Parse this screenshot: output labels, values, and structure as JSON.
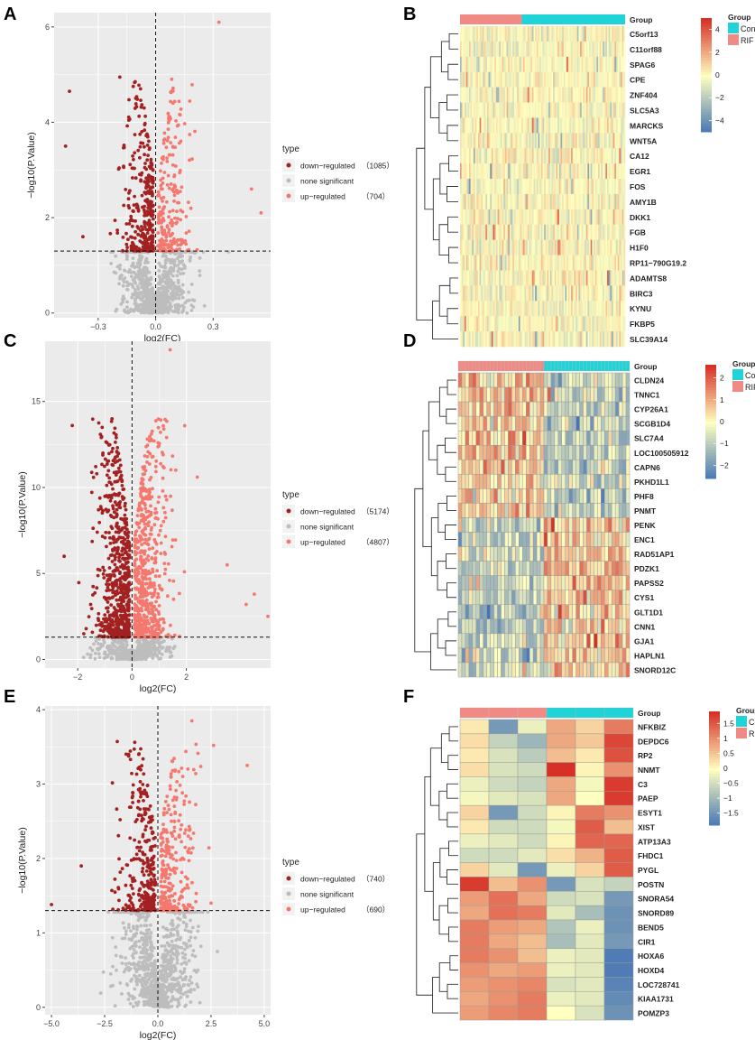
{
  "colors": {
    "down": "#a32121",
    "none": "#bdbdbd",
    "up": "#f4786e",
    "panel_bg": "#ebebeb",
    "grid": "#ffffff",
    "group_control": "#1fd3d6",
    "group_rif": "#f08a84",
    "heat_low": "#4575b4",
    "heat_mid": "#ffffbf",
    "heat_high": "#d73027"
  },
  "chart_data": [
    {
      "panel": "A",
      "type": "scatter",
      "xlabel": "log2(FC)",
      "ylabel": "−log10(P.Value)",
      "xlim": [
        -0.53,
        0.6
      ],
      "ylim": [
        -0.1,
        6.3
      ],
      "xticks": [
        -0.3,
        0.0,
        0.3
      ],
      "xtick_labels": [
        "−0.3",
        "0.0",
        "0.3"
      ],
      "yticks": [
        0,
        2,
        4,
        6
      ],
      "ytick_labels": [
        "0",
        "2",
        "4",
        "6"
      ],
      "threshold_y": 1.3,
      "sim": {
        "xspread": 0.075,
        "ymaxn": 5.0,
        "ndown": 320,
        "nup": 220,
        "nnone": 900,
        "seed": 11
      },
      "outliers": [
        [
          0.33,
          6.1
        ],
        [
          -0.45,
          4.65
        ],
        [
          -0.47,
          3.5
        ],
        [
          0.5,
          2.6
        ],
        [
          0.55,
          2.1
        ],
        [
          -0.38,
          1.6
        ]
      ],
      "legend": {
        "title": "type",
        "items": [
          {
            "label": "down−regulated",
            "count": "（1085）"
          },
          {
            "label": "none significant",
            "count": ""
          },
          {
            "label": "up−regulated",
            "count": "（704）"
          }
        ]
      }
    },
    {
      "panel": "C",
      "type": "scatter",
      "xlabel": "log2(FC)",
      "ylabel": "−log10(P.Value)",
      "xlim": [
        -3.2,
        5.1
      ],
      "ylim": [
        -0.5,
        18.5
      ],
      "xticks": [
        -2,
        0,
        2
      ],
      "xtick_labels": [
        "−2",
        "0",
        "2"
      ],
      "yticks": [
        0,
        5,
        10,
        15
      ],
      "ytick_labels": [
        "0",
        "5",
        "10",
        "15"
      ],
      "threshold_y": 1.3,
      "sim": {
        "xspread": 0.55,
        "ymaxn": 14.0,
        "ndown": 700,
        "nup": 650,
        "nnone": 600,
        "seed": 23
      },
      "outliers": [
        [
          1.4,
          18.0
        ],
        [
          -2.2,
          13.6
        ],
        [
          2.4,
          10.6
        ],
        [
          3.5,
          5.5
        ],
        [
          4.5,
          3.8
        ],
        [
          5.0,
          2.5
        ],
        [
          4.2,
          3.2
        ],
        [
          -2.5,
          6.0
        ]
      ],
      "legend": {
        "title": "type",
        "items": [
          {
            "label": "down−regulated",
            "count": "（5174）"
          },
          {
            "label": "none significant",
            "count": ""
          },
          {
            "label": "up−regulated",
            "count": "（4807）"
          }
        ]
      }
    },
    {
      "panel": "E",
      "type": "scatter",
      "xlabel": "log2(FC)",
      "ylabel": "−log10(P.Value)",
      "xlim": [
        -5.3,
        5.3
      ],
      "ylim": [
        -0.1,
        4.05
      ],
      "xticks": [
        -5,
        -2.5,
        0,
        2.5,
        5
      ],
      "xtick_labels": [
        "−5.0",
        "−2.5",
        "0.0",
        "2.5",
        "5.0"
      ],
      "yticks": [
        0,
        1,
        2,
        3,
        4
      ],
      "ytick_labels": [
        "0",
        "1",
        "2",
        "3",
        "4"
      ],
      "threshold_y": 1.3,
      "sim": {
        "xspread": 0.75,
        "ymaxn": 3.6,
        "ndown": 300,
        "nup": 280,
        "nnone": 900,
        "seed": 37
      },
      "outliers": [
        [
          4.2,
          3.25
        ],
        [
          1.6,
          3.85
        ],
        [
          -5.0,
          1.38
        ],
        [
          -3.6,
          1.9
        ],
        [
          2.5,
          1.4
        ],
        [
          2.8,
          0.75
        ]
      ],
      "legend": {
        "title": "type",
        "items": [
          {
            "label": "down−regulated",
            "count": "（740）"
          },
          {
            "label": "none significant",
            "count": ""
          },
          {
            "label": "up−regulated",
            "count": "（690）"
          }
        ]
      }
    },
    {
      "panel": "B",
      "type": "heatmap",
      "annotation_label": "Group",
      "n_rif": 30,
      "n_control": 80,
      "split_ratio": 0.374,
      "grid": false,
      "rows": [
        "C5orf13",
        "C11orf88",
        "SPAG6",
        "CPE",
        "ZNF404",
        "SLC5A3",
        "MARCKS",
        "WNT5A",
        "CA12",
        "EGR1",
        "FOS",
        "AMY1B",
        "DKK1",
        "FGB",
        "H1F0",
        "RP11−790G19.2",
        "ADAMTS8",
        "BIRC3",
        "KYNU",
        "FKBP5",
        "SLC39A14"
      ],
      "scale": {
        "range": [
          -5,
          5
        ],
        "ticks": [
          4,
          2,
          0,
          -2,
          -4
        ],
        "tick_labels": [
          "4",
          "2",
          "0",
          "−2",
          "−4"
        ]
      },
      "legend": {
        "title": "Group",
        "items": [
          "Contro",
          "RIF"
        ]
      },
      "sim": {
        "mode": "noise",
        "seed": 5
      }
    },
    {
      "panel": "D",
      "type": "heatmap",
      "annotation_label": "Group",
      "n_rif": 24,
      "n_control": 24,
      "split_ratio": 0.5,
      "grid": true,
      "rows": [
        "CLDN24",
        "TNNC1",
        "CYP26A1",
        "SCGB1D4",
        "SLC7A4",
        "LOC100505912",
        "CAPN6",
        "PKHD1L1",
        "PHF8",
        "PNMT",
        "PENK",
        "ENC1",
        "RAD51AP1",
        "PDZK1",
        "PAPSS2",
        "CYS1",
        "GLT1D1",
        "CNN1",
        "GJA1",
        "HAPLN1",
        "SNORD12C"
      ],
      "scale": {
        "range": [
          -2.6,
          2.6
        ],
        "ticks": [
          2,
          1,
          0,
          -1,
          -2
        ],
        "tick_labels": [
          "2",
          "1",
          "0",
          "−1",
          "−2"
        ]
      },
      "legend": {
        "title": "Group",
        "items": [
          "Contro",
          "RIF"
        ]
      },
      "sim": {
        "mode": "block",
        "top_rows": 10,
        "seed": 9
      }
    },
    {
      "panel": "F",
      "type": "heatmap",
      "annotation_label": "Group",
      "n_rif": 3,
      "n_control": 3,
      "split_ratio": 0.5,
      "grid": true,
      "rows": [
        "NFKBIZ",
        "DEPDC6",
        "RP2",
        "NNMT",
        "C3",
        "PAEP",
        "ESYT1",
        "XIST",
        "ATP13A3",
        "FHDC1",
        "PYGL",
        "POSTN",
        "SNORA54",
        "SNORD89",
        "BEND5",
        "CIR1",
        "HOXA6",
        "HOXD4",
        "LOC728741",
        "KIAA1731",
        "POMZP3"
      ],
      "scale": {
        "range": [
          -1.9,
          1.9
        ],
        "ticks": [
          1.5,
          1,
          0.5,
          0,
          -0.5,
          -1,
          -1.5
        ],
        "tick_labels": [
          "1.5",
          "1",
          "0.5",
          "0",
          "−0.5",
          "−1",
          "−1.5"
        ]
      },
      "legend": {
        "title": "Group",
        "items": [
          "Contro",
          "RIF"
        ]
      },
      "values": [
        [
          0.2,
          -1.4,
          -0.2,
          0.8,
          0.4,
          1.2
        ],
        [
          0.3,
          -0.6,
          -1.0,
          0.8,
          0.5,
          1.7
        ],
        [
          0.2,
          -0.4,
          -0.7,
          0.6,
          0.2,
          1.6
        ],
        [
          0.3,
          -0.4,
          -0.5,
          1.9,
          0.1,
          1.0
        ],
        [
          -0.2,
          -0.5,
          -0.6,
          0.8,
          -0.1,
          1.8
        ],
        [
          -0.1,
          -0.3,
          -0.4,
          0.8,
          0.0,
          1.8
        ],
        [
          0.4,
          -1.4,
          -0.5,
          0.1,
          1.2,
          1.0
        ],
        [
          0.2,
          -0.5,
          -0.5,
          -0.1,
          1.5,
          0.6
        ],
        [
          -0.2,
          -0.3,
          -0.5,
          0.1,
          1.4,
          1.4
        ],
        [
          -0.5,
          -0.5,
          -0.3,
          0.3,
          0.7,
          1.5
        ],
        [
          0.4,
          -0.3,
          -1.4,
          -0.2,
          0.4,
          1.5
        ],
        [
          1.8,
          0.6,
          1.0,
          -1.4,
          -0.4,
          -0.6
        ],
        [
          0.9,
          1.3,
          0.8,
          -0.5,
          -0.4,
          -1.4
        ],
        [
          0.8,
          1.3,
          1.2,
          -0.3,
          -0.9,
          -1.5
        ],
        [
          1.2,
          0.9,
          0.8,
          -0.8,
          -0.2,
          -1.5
        ],
        [
          1.2,
          0.8,
          0.6,
          -0.9,
          -0.3,
          -1.4
        ],
        [
          1.2,
          1.0,
          0.6,
          -0.2,
          -0.3,
          -1.8
        ],
        [
          1.0,
          0.8,
          0.9,
          -0.2,
          -0.3,
          -1.8
        ],
        [
          0.9,
          1.0,
          1.1,
          -0.4,
          -0.3,
          -1.7
        ],
        [
          0.8,
          1.0,
          1.2,
          -0.2,
          -0.3,
          -1.6
        ],
        [
          0.9,
          1.1,
          1.2,
          0.0,
          -0.4,
          -1.5
        ]
      ]
    }
  ]
}
